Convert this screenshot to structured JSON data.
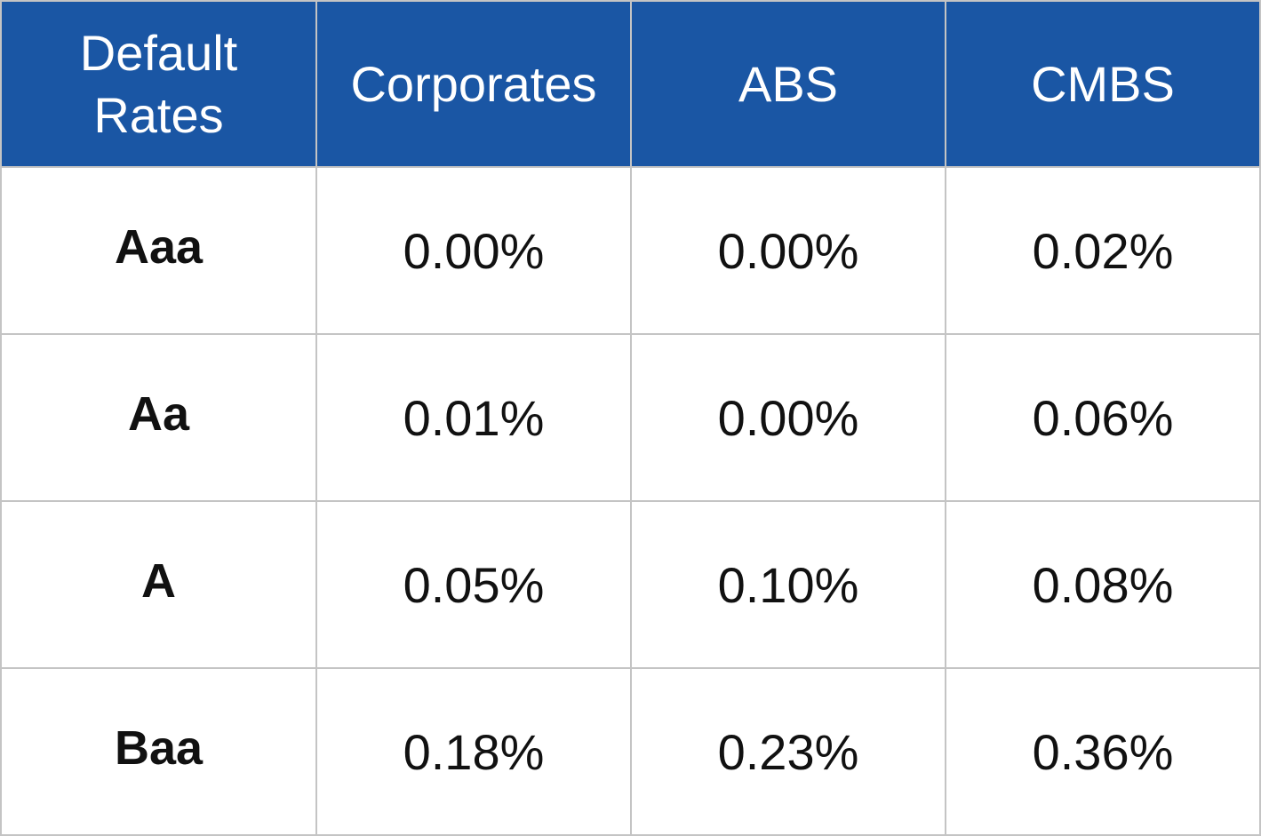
{
  "chart_data": {
    "type": "table",
    "columns": [
      "Default Rates",
      "Corporates",
      "ABS",
      "CMBS"
    ],
    "rows": [
      {
        "label": "Aaa",
        "values": [
          "0.00%",
          "0.00%",
          "0.02%"
        ]
      },
      {
        "label": "Aa",
        "values": [
          "0.01%",
          "0.00%",
          "0.06%"
        ]
      },
      {
        "label": "A",
        "values": [
          "0.05%",
          "0.10%",
          "0.08%"
        ]
      },
      {
        "label": "Baa",
        "values": [
          "0.18%",
          "0.23%",
          "0.36%"
        ]
      }
    ],
    "header_color": "#1a56a4"
  }
}
